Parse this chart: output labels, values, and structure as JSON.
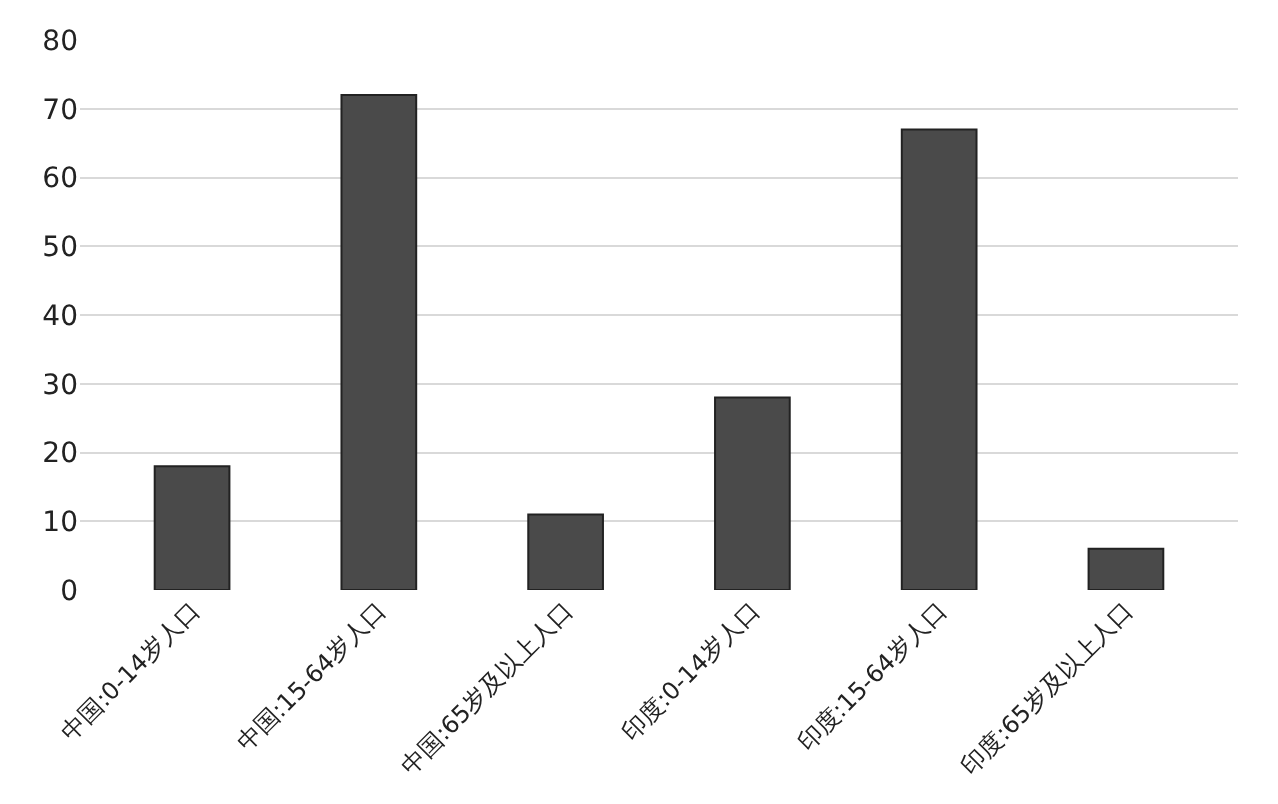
{
  "chart_data": {
    "type": "bar",
    "categories": [
      "中国:0-14岁人口",
      "中国:15-64岁人口",
      "中国:65岁及以上人口",
      "印度:0-14岁人口",
      "印度:15-64岁人口",
      "印度:65岁及以上人口"
    ],
    "values": [
      18,
      72,
      11,
      28,
      67,
      6
    ],
    "color": "#4a4a4a",
    "ylim": [
      0,
      80
    ],
    "yticks": [
      0,
      10,
      20,
      30,
      40,
      50,
      60,
      70,
      80
    ],
    "grid": "y"
  }
}
